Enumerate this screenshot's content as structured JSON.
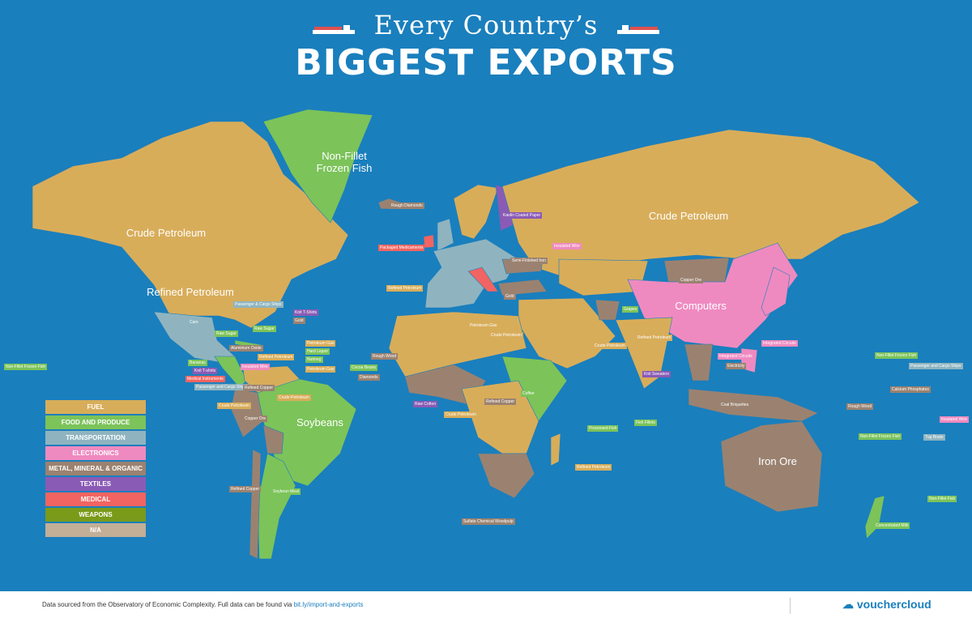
{
  "title": {
    "line1": "Every Country’s",
    "line2": "BIGGEST EXPORTS"
  },
  "colors": {
    "ocean": "#1a7fbd",
    "fuel": "#d8ad5a",
    "food": "#7cc35a",
    "transport": "#8fb4c0",
    "electronics": "#ef8ac0",
    "metal": "#9b8270",
    "textiles": "#8a5bb5",
    "medical": "#f26461",
    "weapons": "#7a9a1a",
    "na": "#c3ae97"
  },
  "regions": {
    "canada": "Crude Petroleum",
    "usa": "Refined Petroleum",
    "greenland": "Non-Fillet Frozen Fish",
    "russia": "Crude Petroleum",
    "china": "Computers",
    "brazil": "Soybeans",
    "australia": "Iron Ore"
  },
  "labels": [
    {
      "text": "Cars",
      "cat": "transport"
    },
    {
      "text": "Passenger & Cargo Ships",
      "cat": "transport"
    },
    {
      "text": "Knit T-Shirts",
      "cat": "textiles"
    },
    {
      "text": "Gold",
      "cat": "metal"
    },
    {
      "text": "Raw Sugar",
      "cat": "food"
    },
    {
      "text": "Raw Sugar",
      "cat": "food"
    },
    {
      "text": "Aluminium Oxide",
      "cat": "metal"
    },
    {
      "text": "Bananas",
      "cat": "food"
    },
    {
      "text": "Knit T-shirts",
      "cat": "textiles"
    },
    {
      "text": "Medical Instruments",
      "cat": "medical"
    },
    {
      "text": "Passenger and Cargo Ships",
      "cat": "transport"
    },
    {
      "text": "Insulated Wire",
      "cat": "electronics"
    },
    {
      "text": "Refined Petroleum",
      "cat": "fuel"
    },
    {
      "text": "Petroleum Gas",
      "cat": "fuel"
    },
    {
      "text": "Hard Liquor",
      "cat": "food"
    },
    {
      "text": "Nutmeg",
      "cat": "food"
    },
    {
      "text": "Petroleum Gas",
      "cat": "fuel"
    },
    {
      "text": "Crude Petroleum",
      "cat": "fuel"
    },
    {
      "text": "Refined Copper",
      "cat": "metal"
    },
    {
      "text": "Crude Petroleum",
      "cat": "fuel"
    },
    {
      "text": "Copper Ore",
      "cat": "metal"
    },
    {
      "text": "Refined Copper",
      "cat": "metal"
    },
    {
      "text": "Soybean Meal",
      "cat": "food"
    },
    {
      "text": "Non-Fillet Frozen Fish",
      "cat": "food"
    },
    {
      "text": "Packaged Medicaments",
      "cat": "medical"
    },
    {
      "text": "Refined Petroleum",
      "cat": "fuel"
    },
    {
      "text": "Rough Diamonds",
      "cat": "metal"
    },
    {
      "text": "Insulated Wire",
      "cat": "electronics"
    },
    {
      "text": "Kaolin Coated Paper",
      "cat": "textiles"
    },
    {
      "text": "Semi-Finished Iron",
      "cat": "metal"
    },
    {
      "text": "Gold",
      "cat": "metal"
    },
    {
      "text": "Petroleum Gas",
      "cat": "fuel"
    },
    {
      "text": "Crude Petroleum",
      "cat": "fuel"
    },
    {
      "text": "Rough Wood",
      "cat": "metal"
    },
    {
      "text": "Cocoa Beans",
      "cat": "food"
    },
    {
      "text": "Diamonds",
      "cat": "metal"
    },
    {
      "text": "Raw Cotton",
      "cat": "textiles"
    },
    {
      "text": "Crude Petroleum",
      "cat": "fuel"
    },
    {
      "text": "Refined Copper",
      "cat": "metal"
    },
    {
      "text": "Sulfate Chemical Woodpulp",
      "cat": "metal"
    },
    {
      "text": "Coffee",
      "cat": "food"
    },
    {
      "text": "Crude Petroleum",
      "cat": "fuel"
    },
    {
      "text": "Refined Petroleum",
      "cat": "fuel"
    },
    {
      "text": "Processed Fish",
      "cat": "food"
    },
    {
      "text": "Fish Fillets",
      "cat": "food"
    },
    {
      "text": "Grapes",
      "cat": "food"
    },
    {
      "text": "Refined Petroleum",
      "cat": "fuel"
    },
    {
      "text": "Knit Sweaters",
      "cat": "textiles"
    },
    {
      "text": "Integrated Circuits",
      "cat": "electronics"
    },
    {
      "text": "Integrated Circuits",
      "cat": "electronics"
    },
    {
      "text": "Electricity",
      "cat": "metal"
    },
    {
      "text": "Coal Briquettes",
      "cat": "metal"
    },
    {
      "text": "Copper Ore",
      "cat": "metal"
    },
    {
      "text": "Rough Wood",
      "cat": "metal"
    },
    {
      "text": "Non-Fillet Frozen Fish",
      "cat": "food"
    },
    {
      "text": "Passenger and Cargo Ships",
      "cat": "transport"
    },
    {
      "text": "Calcium Phosphates",
      "cat": "metal"
    },
    {
      "text": "Insulated Wire",
      "cat": "electronics"
    },
    {
      "text": "Tug Boats",
      "cat": "transport"
    },
    {
      "text": "Concentrated Milk",
      "cat": "food"
    },
    {
      "text": "Non-Fillet Frozen Fish",
      "cat": "food"
    },
    {
      "text": "Non-Fillet Fish",
      "cat": "food"
    }
  ],
  "legend": [
    {
      "label": "FUEL",
      "cat": "fuel"
    },
    {
      "label": "FOOD AND PRODUCE",
      "cat": "food"
    },
    {
      "label": "TRANSPORTATION",
      "cat": "transport"
    },
    {
      "label": "ELECTRONICS",
      "cat": "electronics"
    },
    {
      "label": "METAL, MINERAL & ORGANIC",
      "cat": "metal"
    },
    {
      "label": "TEXTILES",
      "cat": "textiles"
    },
    {
      "label": "MEDICAL",
      "cat": "medical"
    },
    {
      "label": "WEAPONS",
      "cat": "weapons"
    },
    {
      "label": "N/A",
      "cat": "na"
    }
  ],
  "footer": {
    "source": "Data sourced from the Observatory of Economic Complexity. Full data can be found via ",
    "link": "bit.ly/import-and-exports",
    "logo": "vouchercloud"
  }
}
